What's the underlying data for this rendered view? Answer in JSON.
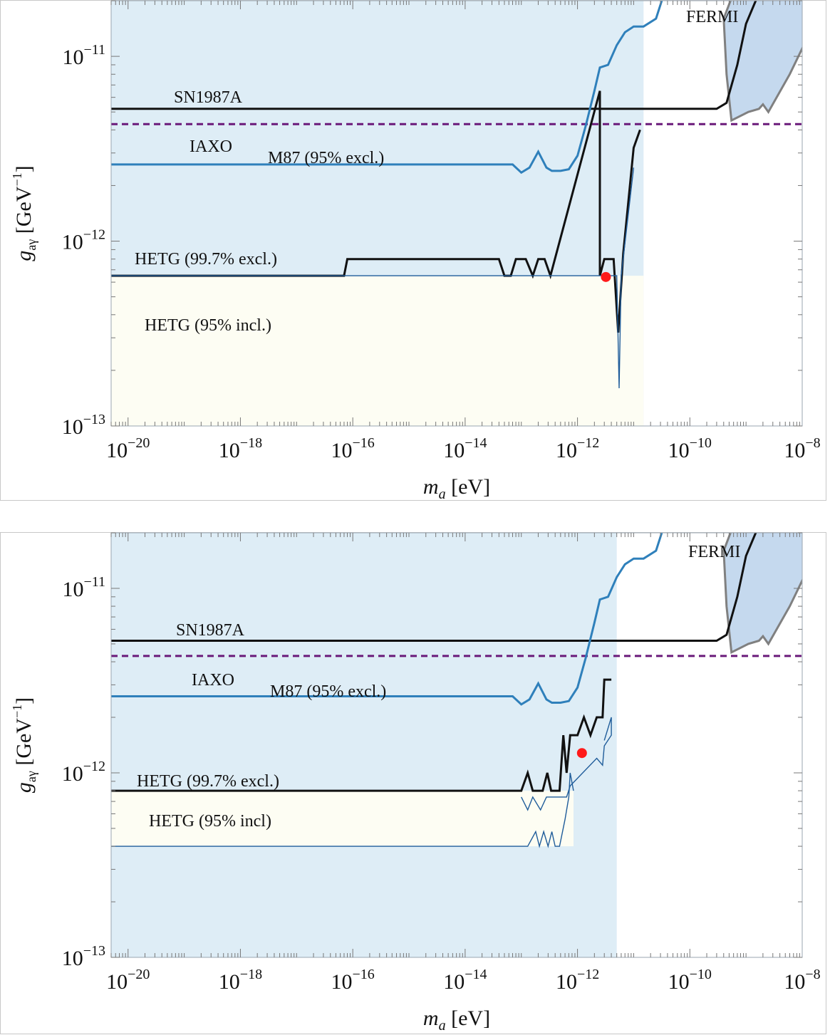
{
  "colors": {
    "m87_region": "#deedf6",
    "hetg_incl_region": "#fdfdf3",
    "fermi_fill": "#c5d9ee",
    "fermi_edge": "#808080",
    "m87_line": "#2f80bb",
    "hetg_line": "#1f5c9a",
    "black_line": "#111111",
    "iaxo_line": "#6a1a7a",
    "iaxo_text": "#6a1a7a",
    "best_fit": "#ff1a1a"
  },
  "chart_data": [
    {
      "type": "line",
      "xlabel": "m_a [eV]",
      "ylabel": "g_aγ [GeV^-1]",
      "xscale": "log",
      "yscale": "log",
      "xlim": [
        5e-21,
        1e-08
      ],
      "ylim": [
        1e-13,
        2e-11
      ],
      "xticks": [
        {
          "base": "10",
          "exp": "−20",
          "value": -20
        },
        {
          "base": "10",
          "exp": "−18",
          "value": -18
        },
        {
          "base": "10",
          "exp": "−16",
          "value": -16
        },
        {
          "base": "10",
          "exp": "−14",
          "value": -14
        },
        {
          "base": "10",
          "exp": "−12",
          "value": -12
        },
        {
          "base": "10",
          "exp": "−10",
          "value": -10
        },
        {
          "base": "10",
          "exp": "−8",
          "value": -8
        }
      ],
      "yticks": [
        {
          "base": "10",
          "exp": "−11",
          "value": -11
        },
        {
          "base": "10",
          "exp": "−12",
          "value": -12
        },
        {
          "base": "10",
          "exp": "−13",
          "value": -13
        }
      ],
      "labels": {
        "sn": "SN1987A",
        "iaxo": "IAXO",
        "m87": "M87 (95% excl.)",
        "hetg_excl": "HETG (99.7% excl.)",
        "hetg_incl": "HETG (95% incl.)",
        "fermi": "FERMI"
      },
      "series": [
        {
          "key": "sn1987a",
          "name": "SN1987A",
          "points": [
            [
              5e-21,
              5.2e-12
            ],
            [
              3e-10,
              5.2e-12
            ],
            [
              4.5e-10,
              5.6e-12
            ],
            [
              7e-10,
              9e-12
            ],
            [
              1e-09,
              1.5e-11
            ],
            [
              1.7e-09,
              2.2e-11
            ]
          ]
        },
        {
          "key": "iaxo",
          "name": "IAXO",
          "points": [
            [
              5e-21,
              4.3e-12
            ],
            [
              1e-08,
              4.3e-12
            ]
          ]
        },
        {
          "key": "m87",
          "name": "M87 (95% excl.)",
          "points": [
            [
              5e-21,
              2.6e-12
            ],
            [
              5e-14,
              2.6e-12
            ],
            [
              7e-14,
              2.6e-12
            ],
            [
              1e-13,
              2.35e-12
            ],
            [
              1.4e-13,
              2.5e-12
            ],
            [
              2e-13,
              3.05e-12
            ],
            [
              2.8e-13,
              2.5e-12
            ],
            [
              3.5e-13,
              2.4e-12
            ],
            [
              5e-13,
              2.4e-12
            ],
            [
              7e-13,
              2.45e-12
            ],
            [
              1e-12,
              2.9e-12
            ],
            [
              1.4e-12,
              4.2e-12
            ],
            [
              2e-12,
              6.5e-12
            ],
            [
              2.5e-12,
              8.7e-12
            ],
            [
              3.5e-12,
              9e-12
            ],
            [
              5e-12,
              1.15e-11
            ],
            [
              7e-12,
              1.35e-11
            ],
            [
              1e-11,
              1.45e-11
            ],
            [
              1.5e-11,
              1.45e-11
            ],
            [
              2.5e-11,
              1.6e-11
            ],
            [
              3.5e-11,
              2.2e-11
            ]
          ]
        },
        {
          "key": "hetg_excl",
          "name": "HETG (99.7% excl.)",
          "points": [
            [
              5e-21,
              6.5e-13
            ],
            [
              7e-17,
              6.5e-13
            ],
            [
              8e-17,
              8e-13
            ],
            [
              4e-14,
              8e-13
            ],
            [
              5e-14,
              6.5e-13
            ],
            [
              6.5e-14,
              6.5e-13
            ],
            [
              8e-14,
              8e-13
            ],
            [
              1.2e-13,
              8e-13
            ],
            [
              1.6e-13,
              6.5e-13
            ],
            [
              2e-13,
              8e-13
            ],
            [
              2.6e-13,
              8e-13
            ],
            [
              3.3e-13,
              6.5e-13
            ],
            [
              2.5e-12,
              6.5e-12
            ],
            [
              2.5e-12,
              6.5e-13
            ],
            [
              3e-12,
              8e-13
            ],
            [
              4.4e-12,
              8e-13
            ],
            [
              5.3e-12,
              3.2e-13
            ],
            [
              6.5e-12,
              8.5e-13
            ],
            [
              1e-11,
              3.2e-12
            ],
            [
              1.3e-11,
              4e-12
            ]
          ]
        },
        {
          "key": "hetg_incl_upper",
          "name": "HETG (95% incl.)",
          "points": [
            [
              5e-21,
              6.5e-13
            ],
            [
              5e-12,
              6.5e-13
            ],
            [
              5.5e-12,
              1.6e-13
            ],
            [
              6e-12,
              6.5e-13
            ],
            [
              1e-11,
              2.5e-12
            ]
          ]
        }
      ],
      "best_fit": {
        "x": 3.2e-12,
        "y": 6.4e-13
      },
      "regions": [
        {
          "key": "m87_excl",
          "xmax": 1.5e-11
        },
        {
          "key": "hetg_incl",
          "xmax": 1.5e-11,
          "ymin": 1e-13,
          "ymax": 6.5e-13
        }
      ]
    },
    {
      "type": "line",
      "xlabel": "m_a [eV]",
      "ylabel": "g_aγ [GeV^-1]",
      "xscale": "log",
      "yscale": "log",
      "xlim": [
        5e-21,
        1e-08
      ],
      "ylim": [
        1e-13,
        2e-11
      ],
      "xticks": [
        {
          "base": "10",
          "exp": "−20",
          "value": -20
        },
        {
          "base": "10",
          "exp": "−18",
          "value": -18
        },
        {
          "base": "10",
          "exp": "−16",
          "value": -16
        },
        {
          "base": "10",
          "exp": "−14",
          "value": -14
        },
        {
          "base": "10",
          "exp": "−12",
          "value": -12
        },
        {
          "base": "10",
          "exp": "−10",
          "value": -10
        },
        {
          "base": "10",
          "exp": "−8",
          "value": -8
        }
      ],
      "yticks": [
        {
          "base": "10",
          "exp": "−11",
          "value": -11
        },
        {
          "base": "10",
          "exp": "−12",
          "value": -12
        },
        {
          "base": "10",
          "exp": "−13",
          "value": -13
        }
      ],
      "labels": {
        "sn": "SN1987A",
        "iaxo": "IAXO",
        "m87": "M87 (95% excl.)",
        "hetg_excl": "HETG (99.7% excl.)",
        "hetg_incl": "HETG (95% incl)",
        "fermi": "FERMI"
      },
      "series": [
        {
          "key": "sn1987a",
          "name": "SN1987A",
          "points": [
            [
              5e-21,
              5.2e-12
            ],
            [
              3e-10,
              5.2e-12
            ],
            [
              4.5e-10,
              5.6e-12
            ],
            [
              7e-10,
              9e-12
            ],
            [
              1e-09,
              1.5e-11
            ],
            [
              1.7e-09,
              2.2e-11
            ]
          ]
        },
        {
          "key": "iaxo",
          "name": "IAXO",
          "points": [
            [
              5e-21,
              4.3e-12
            ],
            [
              1e-08,
              4.3e-12
            ]
          ]
        },
        {
          "key": "m87",
          "name": "M87 (95% excl.)",
          "points": [
            [
              5e-21,
              2.6e-12
            ],
            [
              5e-14,
              2.6e-12
            ],
            [
              7e-14,
              2.6e-12
            ],
            [
              1e-13,
              2.35e-12
            ],
            [
              1.4e-13,
              2.5e-12
            ],
            [
              2e-13,
              3.05e-12
            ],
            [
              2.8e-13,
              2.5e-12
            ],
            [
              3.5e-13,
              2.4e-12
            ],
            [
              5e-13,
              2.4e-12
            ],
            [
              7e-13,
              2.45e-12
            ],
            [
              1e-12,
              2.9e-12
            ],
            [
              1.4e-12,
              4.2e-12
            ],
            [
              2e-12,
              6.5e-12
            ],
            [
              2.5e-12,
              8.7e-12
            ],
            [
              3.5e-12,
              9e-12
            ],
            [
              5e-12,
              1.15e-11
            ],
            [
              7e-12,
              1.35e-11
            ],
            [
              1e-11,
              1.45e-11
            ],
            [
              1.5e-11,
              1.45e-11
            ],
            [
              2.5e-11,
              1.6e-11
            ],
            [
              3.5e-11,
              2.2e-11
            ]
          ]
        },
        {
          "key": "hetg_excl",
          "name": "HETG (99.7% excl.)",
          "points": [
            [
              5e-21,
              8e-13
            ],
            [
              1e-13,
              8e-13
            ],
            [
              1.3e-13,
              1e-12
            ],
            [
              1.6e-13,
              8e-13
            ],
            [
              2.4e-13,
              8e-13
            ],
            [
              2.9e-13,
              1e-12
            ],
            [
              3.4e-13,
              8e-13
            ],
            [
              4.8e-13,
              8e-13
            ],
            [
              5.6e-13,
              1.6e-12
            ],
            [
              6.4e-13,
              1e-12
            ],
            [
              7.4e-13,
              1.6e-12
            ],
            [
              1e-12,
              1.6e-12
            ],
            [
              1.3e-12,
              2e-12
            ],
            [
              1.7e-12,
              1.6e-12
            ],
            [
              2.2e-12,
              2e-12
            ],
            [
              2.8e-12,
              2e-12
            ],
            [
              3e-12,
              3.2e-12
            ],
            [
              4e-12,
              3.2e-12
            ]
          ]
        },
        {
          "key": "hetg_incl_lower",
          "name": "HETG (95% incl)",
          "points": [
            [
              5e-21,
              4e-13
            ],
            [
              1.3e-13,
              4e-13
            ],
            [
              1.8e-13,
              4.8e-13
            ],
            [
              2.1e-13,
              4e-13
            ],
            [
              2.5e-13,
              4.8e-13
            ],
            [
              3e-13,
              4e-13
            ],
            [
              3.5e-13,
              4.8e-13
            ],
            [
              4e-13,
              4e-13
            ],
            [
              4.8e-13,
              4e-13
            ],
            [
              6e-13,
              5.6e-13
            ],
            [
              7e-13,
              7.4e-13
            ],
            [
              7.4e-13,
              1e-12
            ],
            [
              8.5e-13,
              8e-13
            ]
          ]
        },
        {
          "key": "hetg_incl_upper",
          "name": "HETG (95% incl)",
          "points": [
            [
              1e-13,
              7.4e-13
            ],
            [
              1.3e-13,
              6.3e-13
            ],
            [
              1.6e-13,
              7.4e-13
            ],
            [
              2.2e-13,
              6.3e-13
            ],
            [
              2.8e-13,
              7.4e-13
            ],
            [
              6.4e-13,
              7.4e-13
            ],
            [
              7.4e-13,
              8.5e-13
            ],
            [
              2.2e-12,
              1.2e-12
            ],
            [
              2.8e-12,
              1.1e-12
            ],
            [
              3e-12,
              1.4e-12
            ],
            [
              4e-12,
              1.6e-12
            ],
            [
              4e-12,
              2e-12
            ],
            [
              3e-12,
              1.5e-12
            ]
          ]
        }
      ],
      "best_fit": {
        "x": 1.2e-12,
        "y": 1.28e-12
      },
      "regions": [
        {
          "key": "m87_excl",
          "xmax": 5e-12
        },
        {
          "key": "hetg_incl",
          "xmin": 5e-21,
          "xmax": 8.5e-13,
          "ymin": 4e-13,
          "ymax": 8e-13
        }
      ]
    }
  ]
}
